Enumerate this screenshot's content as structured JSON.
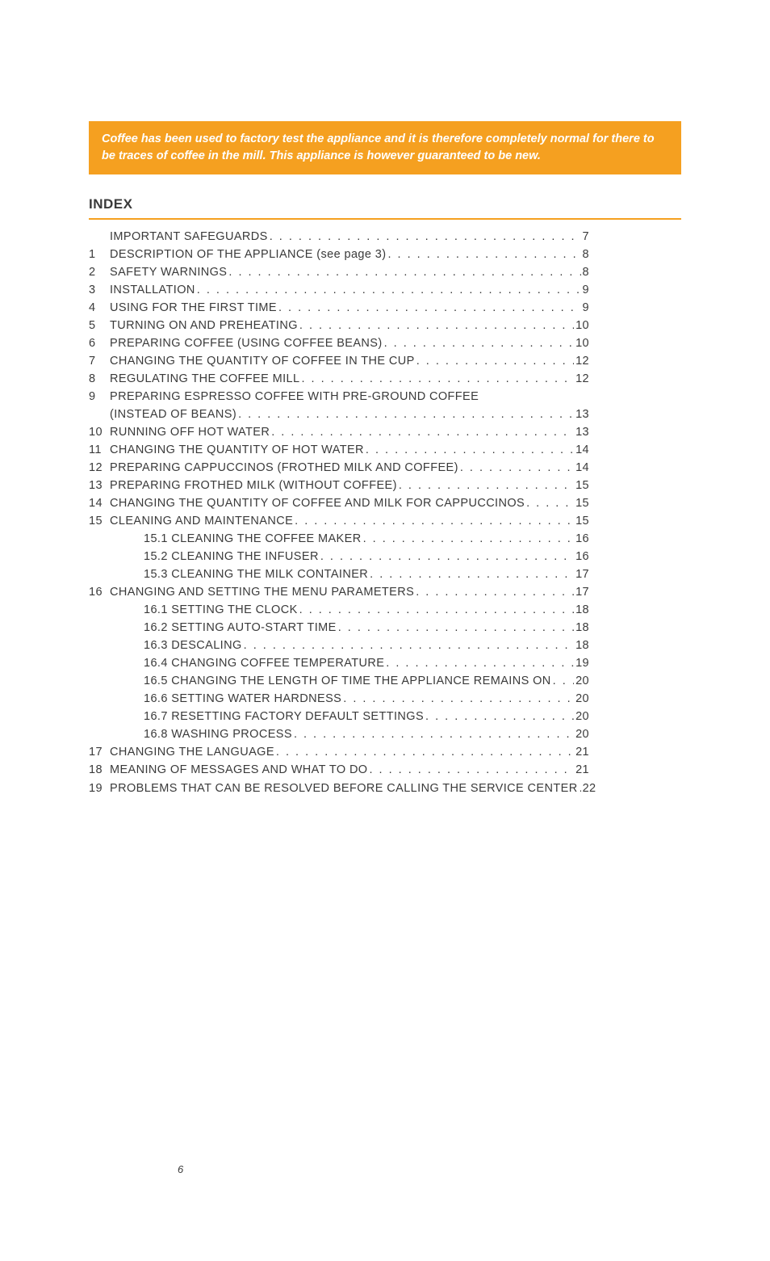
{
  "colors": {
    "accent": "#f5a020",
    "text": "#3a3a3a",
    "notice_text": "#ffffff",
    "background": "#ffffff"
  },
  "typography": {
    "base_font": "Helvetica Neue, Helvetica, Arial, sans-serif",
    "base_size_pt": 11,
    "heading_size_pt": 13,
    "notice_italic": true,
    "notice_weight": "600"
  },
  "notice": {
    "text": "Coffee has been used to factory test the appliance and it is therefore completely normal for there to be traces of coffee in the mill. This appliance is however guaranteed to be new."
  },
  "index": {
    "heading": "INDEX",
    "entries": [
      {
        "num": "",
        "indent": 1,
        "title": "IMPORTANT SAFEGUARDS",
        "page": "7"
      },
      {
        "num": "1",
        "indent": 0,
        "title": "DESCRIPTION OF THE APPLIANCE (see page 3)",
        "page": "8"
      },
      {
        "num": "2",
        "indent": 0,
        "title": "SAFETY WARNINGS",
        "page": "8"
      },
      {
        "num": "3",
        "indent": 0,
        "title": "INSTALLATION",
        "page": "9"
      },
      {
        "num": "4",
        "indent": 0,
        "title": "USING FOR THE FIRST TIME",
        "page": "9"
      },
      {
        "num": "5",
        "indent": 0,
        "title": "TURNING ON AND PREHEATING",
        "page": "10"
      },
      {
        "num": "6",
        "indent": 0,
        "title": "PREPARING COFFEE (USING COFFEE BEANS)",
        "page": "10"
      },
      {
        "num": "7",
        "indent": 0,
        "title": "CHANGING THE QUANTITY OF COFFEE IN THE CUP",
        "page": "12"
      },
      {
        "num": "8",
        "indent": 0,
        "title": "REGULATING THE COFFEE MILL",
        "page": "12"
      },
      {
        "num": "9",
        "indent": 0,
        "title": "PREPARING ESPRESSO COFFEE WITH PRE-GROUND COFFEE",
        "page": ""
      },
      {
        "num": "",
        "indent": 1,
        "title": "(INSTEAD OF BEANS)",
        "page": "13"
      },
      {
        "num": "10",
        "indent": 0,
        "title": "RUNNING OFF HOT WATER",
        "page": "13"
      },
      {
        "num": "11",
        "indent": 0,
        "title": "CHANGING THE QUANTITY OF HOT WATER",
        "page": "14"
      },
      {
        "num": "12",
        "indent": 0,
        "title": "PREPARING CAPPUCCINOS (FROTHED MILK AND COFFEE)",
        "page": "14"
      },
      {
        "num": "13",
        "indent": 0,
        "title": "PREPARING FROTHED MILK (WITHOUT COFFEE)",
        "page": "15"
      },
      {
        "num": "14",
        "indent": 0,
        "title": "CHANGING THE QUANTITY OF COFFEE AND MILK FOR CAPPUCCINOS",
        "page": "15"
      },
      {
        "num": "15",
        "indent": 0,
        "title": "CLEANING AND MAINTENANCE",
        "page": "15"
      },
      {
        "num": "",
        "indent": 2,
        "title": "15.1 CLEANING THE COFFEE MAKER",
        "page": "16"
      },
      {
        "num": "",
        "indent": 2,
        "title": "15.2 CLEANING THE INFUSER",
        "page": "16"
      },
      {
        "num": "",
        "indent": 2,
        "title": "15.3 CLEANING THE MILK CONTAINER",
        "page": "17"
      },
      {
        "num": "16",
        "indent": 0,
        "title": "CHANGING AND SETTING THE MENU PARAMETERS",
        "page": "17"
      },
      {
        "num": "",
        "indent": 2,
        "title": "16.1 SETTING THE CLOCK",
        "page": "18"
      },
      {
        "num": "",
        "indent": 2,
        "title": "16.2 SETTING AUTO-START TIME",
        "page": "18"
      },
      {
        "num": "",
        "indent": 2,
        "title": "16.3 DESCALING",
        "page": "18"
      },
      {
        "num": "",
        "indent": 2,
        "title": "16.4 CHANGING COFFEE TEMPERATURE",
        "page": "19"
      },
      {
        "num": "",
        "indent": 2,
        "title": "16.5 CHANGING THE LENGTH OF TIME THE APPLIANCE REMAINS ON",
        "page": "20"
      },
      {
        "num": "",
        "indent": 2,
        "title": "16.6 SETTING WATER HARDNESS",
        "page": "20"
      },
      {
        "num": "",
        "indent": 2,
        "title": "16.7 RESETTING FACTORY DEFAULT SETTINGS",
        "page": "20"
      },
      {
        "num": "",
        "indent": 2,
        "title": "16.8 WASHING PROCESS",
        "page": "20"
      },
      {
        "num": "17",
        "indent": 0,
        "title": "CHANGING THE LANGUAGE",
        "page": "21"
      },
      {
        "num": "18",
        "indent": 0,
        "title": "MEANING OF MESSAGES AND WHAT TO DO",
        "page": "21"
      },
      {
        "num": "19",
        "indent": 0,
        "title": "PROBLEMS THAT CAN BE RESOLVED BEFORE CALLING THE SERVICE CENTER",
        "page": "22"
      }
    ]
  },
  "page_number": "6"
}
